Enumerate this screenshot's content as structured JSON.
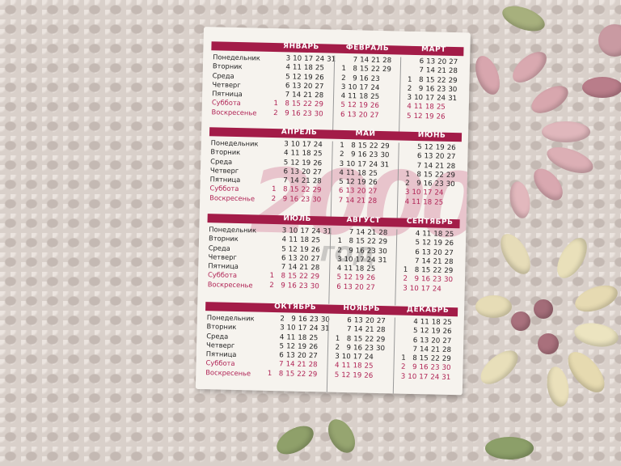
{
  "watermark": {
    "year": "2000",
    "word": "год"
  },
  "weekdays": [
    "Понедельник",
    "Вторник",
    "Среда",
    "Четверг",
    "Пятница",
    "Суббота",
    "Воскресенье"
  ],
  "colors": {
    "accent": "#a31c48",
    "weekend_text": "#b02355"
  },
  "quarters": [
    {
      "months": [
        {
          "name": "ЯНВАРЬ",
          "rows": [
            [
              "",
              "3",
              "10",
              "17",
              "24",
              "31"
            ],
            [
              "",
              "4",
              "11",
              "18",
              "25"
            ],
            [
              "",
              "5",
              "12",
              "19",
              "26"
            ],
            [
              "",
              "6",
              "13",
              "20",
              "27"
            ],
            [
              "",
              "7",
              "14",
              "21",
              "28"
            ],
            [
              "1",
              "8",
              "15",
              "22",
              "29"
            ],
            [
              "2",
              "9",
              "16",
              "23",
              "30"
            ]
          ]
        },
        {
          "name": "ФЕВРАЛЬ",
          "rows": [
            [
              "",
              "7",
              "14",
              "21",
              "28"
            ],
            [
              "1",
              "8",
              "15",
              "22",
              "29"
            ],
            [
              "2",
              "9",
              "16",
              "23"
            ],
            [
              "3",
              "10",
              "17",
              "24"
            ],
            [
              "4",
              "11",
              "18",
              "25"
            ],
            [
              "5",
              "12",
              "19",
              "26"
            ],
            [
              "6",
              "13",
              "20",
              "27"
            ]
          ]
        },
        {
          "name": "МАРТ",
          "rows": [
            [
              "",
              "6",
              "13",
              "20",
              "27"
            ],
            [
              "",
              "7",
              "14",
              "21",
              "28"
            ],
            [
              "1",
              "8",
              "15",
              "22",
              "29"
            ],
            [
              "2",
              "9",
              "16",
              "23",
              "30"
            ],
            [
              "3",
              "10",
              "17",
              "24",
              "31"
            ],
            [
              "4",
              "11",
              "18",
              "25"
            ],
            [
              "5",
              "12",
              "19",
              "26"
            ]
          ]
        }
      ]
    },
    {
      "months": [
        {
          "name": "АПРЕЛЬ",
          "rows": [
            [
              "",
              "3",
              "10",
              "17",
              "24"
            ],
            [
              "",
              "4",
              "11",
              "18",
              "25"
            ],
            [
              "",
              "5",
              "12",
              "19",
              "26"
            ],
            [
              "",
              "6",
              "13",
              "20",
              "27"
            ],
            [
              "",
              "7",
              "14",
              "21",
              "28"
            ],
            [
              "1",
              "8",
              "15",
              "22",
              "29"
            ],
            [
              "2",
              "9",
              "16",
              "23",
              "30"
            ]
          ]
        },
        {
          "name": "МАЙ",
          "rows": [
            [
              "1",
              "8",
              "15",
              "22",
              "29"
            ],
            [
              "2",
              "9",
              "16",
              "23",
              "30"
            ],
            [
              "3",
              "10",
              "17",
              "24",
              "31"
            ],
            [
              "4",
              "11",
              "18",
              "25"
            ],
            [
              "5",
              "12",
              "19",
              "26"
            ],
            [
              "6",
              "13",
              "20",
              "27"
            ],
            [
              "7",
              "14",
              "21",
              "28"
            ]
          ]
        },
        {
          "name": "ИЮНЬ",
          "rows": [
            [
              "",
              "5",
              "12",
              "19",
              "26"
            ],
            [
              "",
              "6",
              "13",
              "20",
              "27"
            ],
            [
              "",
              "7",
              "14",
              "21",
              "28"
            ],
            [
              "1",
              "8",
              "15",
              "22",
              "29"
            ],
            [
              "2",
              "9",
              "16",
              "23",
              "30"
            ],
            [
              "3",
              "10",
              "17",
              "24"
            ],
            [
              "4",
              "11",
              "18",
              "25"
            ]
          ]
        }
      ]
    },
    {
      "months": [
        {
          "name": "ИЮЛЬ",
          "rows": [
            [
              "",
              "3",
              "10",
              "17",
              "24",
              "31"
            ],
            [
              "",
              "4",
              "11",
              "18",
              "25"
            ],
            [
              "",
              "5",
              "12",
              "19",
              "26"
            ],
            [
              "",
              "6",
              "13",
              "20",
              "27"
            ],
            [
              "",
              "7",
              "14",
              "21",
              "28"
            ],
            [
              "1",
              "8",
              "15",
              "22",
              "29"
            ],
            [
              "2",
              "9",
              "16",
              "23",
              "30"
            ]
          ]
        },
        {
          "name": "АВГУСТ",
          "rows": [
            [
              "",
              "7",
              "14",
              "21",
              "28"
            ],
            [
              "1",
              "8",
              "15",
              "22",
              "29"
            ],
            [
              "2",
              "9",
              "16",
              "23",
              "30"
            ],
            [
              "3",
              "10",
              "17",
              "24",
              "31"
            ],
            [
              "4",
              "11",
              "18",
              "25"
            ],
            [
              "5",
              "12",
              "19",
              "26"
            ],
            [
              "6",
              "13",
              "20",
              "27"
            ]
          ]
        },
        {
          "name": "СЕНТЯБРЬ",
          "rows": [
            [
              "",
              "4",
              "11",
              "18",
              "25"
            ],
            [
              "",
              "5",
              "12",
              "19",
              "26"
            ],
            [
              "",
              "6",
              "13",
              "20",
              "27"
            ],
            [
              "",
              "7",
              "14",
              "21",
              "28"
            ],
            [
              "1",
              "8",
              "15",
              "22",
              "29"
            ],
            [
              "2",
              "9",
              "16",
              "23",
              "30"
            ],
            [
              "3",
              "10",
              "17",
              "24"
            ]
          ]
        }
      ]
    },
    {
      "months": [
        {
          "name": "ОКТЯБРЬ",
          "rows": [
            [
              "",
              "2",
              "9",
              "16",
              "23",
              "30"
            ],
            [
              "",
              "3",
              "10",
              "17",
              "24",
              "31"
            ],
            [
              "",
              "4",
              "11",
              "18",
              "25"
            ],
            [
              "",
              "5",
              "12",
              "19",
              "26"
            ],
            [
              "",
              "6",
              "13",
              "20",
              "27"
            ],
            [
              "",
              "7",
              "14",
              "21",
              "28"
            ],
            [
              "1",
              "8",
              "15",
              "22",
              "29"
            ]
          ]
        },
        {
          "name": "НОЯБРЬ",
          "rows": [
            [
              "",
              "6",
              "13",
              "20",
              "27"
            ],
            [
              "",
              "7",
              "14",
              "21",
              "28"
            ],
            [
              "1",
              "8",
              "15",
              "22",
              "29"
            ],
            [
              "2",
              "9",
              "16",
              "23",
              "30"
            ],
            [
              "3",
              "10",
              "17",
              "24"
            ],
            [
              "4",
              "11",
              "18",
              "25"
            ],
            [
              "5",
              "12",
              "19",
              "26"
            ]
          ]
        },
        {
          "name": "ДЕКАБРЬ",
          "rows": [
            [
              "",
              "4",
              "11",
              "18",
              "25"
            ],
            [
              "",
              "5",
              "12",
              "19",
              "26"
            ],
            [
              "",
              "6",
              "13",
              "20",
              "27"
            ],
            [
              "",
              "7",
              "14",
              "21",
              "28"
            ],
            [
              "1",
              "8",
              "15",
              "22",
              "29"
            ],
            [
              "2",
              "9",
              "16",
              "23",
              "30"
            ],
            [
              "3",
              "10",
              "17",
              "24",
              "31"
            ]
          ]
        }
      ]
    }
  ]
}
